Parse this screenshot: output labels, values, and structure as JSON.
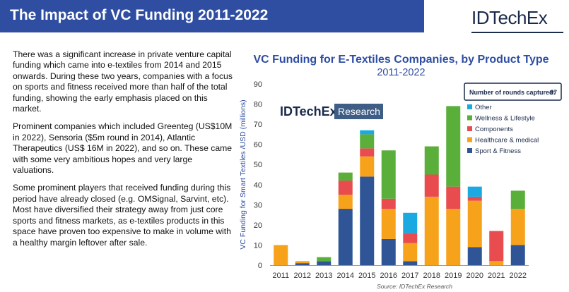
{
  "header": {
    "title": "The Impact of VC Funding 2011-2022",
    "brand": "IDTechEx",
    "color": "#2f4ea2"
  },
  "body_paragraphs": [
    "There was a significant increase in private venture capital funding which came into e-textiles from 2014 and 2015 onwards. During these two years, companies with a focus on sports and fitness received more than half of the total funding, showing the early emphasis placed on this market.",
    "Prominent companies which included Greenteg (US$10M in 2022), Sensoria ($5m round in 2014), Atlantic Therapeutics (US$ 16M in 2022), and so on. These came with some very ambitious hopes and very large valuations.",
    "Some prominent players that received funding during this period have already closed (e.g. OMSignal, Sarvint, etc). Most have diversified their strategy away from just core sports and fitness markets, as e-textiles products in this space have proven too expensive to make in volume with a healthy margin leftover after sale."
  ],
  "chart_data": {
    "type": "bar",
    "stacked": true,
    "title": "VC Funding for E-Textiles Companies, by Product Type",
    "subtitle": "2011-2022",
    "ylabel": "VC Funding for Smart Textiles /USD (millions)",
    "xlabel": "",
    "ylim": [
      0,
      90
    ],
    "yticks": [
      0,
      10,
      20,
      30,
      40,
      50,
      60,
      70,
      80,
      90
    ],
    "categories": [
      "2011",
      "2012",
      "2013",
      "2014",
      "2015",
      "2016",
      "2017",
      "2018",
      "2019",
      "2020",
      "2021",
      "2022"
    ],
    "series": [
      {
        "name": "Sport & Fitness",
        "color": "#2f5597",
        "values": [
          0,
          1,
          2,
          28,
          44,
          13,
          2,
          0,
          0,
          9,
          0,
          10
        ]
      },
      {
        "name": "Healthcare & medical",
        "color": "#f7a21b",
        "values": [
          10,
          1,
          0,
          7,
          10,
          15,
          9,
          34,
          28,
          23,
          2,
          18
        ]
      },
      {
        "name": "Components",
        "color": "#e84c4f",
        "values": [
          0,
          0,
          0,
          7,
          4,
          5,
          5,
          11,
          11,
          2,
          15,
          0
        ]
      },
      {
        "name": "Wellness & Lifestyle",
        "color": "#5aae3a",
        "values": [
          0,
          0,
          2,
          4,
          7,
          24,
          0,
          14,
          40,
          0,
          0,
          9
        ]
      },
      {
        "name": "Other",
        "color": "#1aa9e0",
        "values": [
          0,
          0,
          0,
          0,
          2,
          0,
          10,
          0,
          0,
          5,
          0,
          0
        ]
      }
    ],
    "legend_placement": "right",
    "grid": false,
    "rounds_label": "Number of rounds captured:",
    "rounds_value": "97",
    "watermark_brand": "IDTechEx",
    "watermark_tag": "Research",
    "source": "Source: IDTechEx Research"
  }
}
